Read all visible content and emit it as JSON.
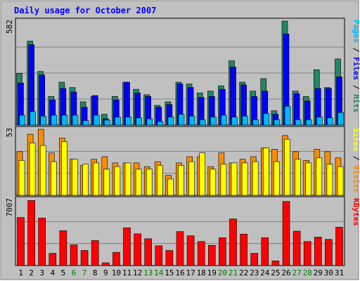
{
  "chart_data": {
    "type": "bar",
    "title": "Daily usage for October 2007",
    "x": [
      "1",
      "2",
      "3",
      "4",
      "5",
      "6",
      "7",
      "8",
      "9",
      "10",
      "11",
      "12",
      "13",
      "14",
      "15",
      "16",
      "17",
      "18",
      "19",
      "20",
      "21",
      "22",
      "23",
      "24",
      "25",
      "26",
      "27",
      "28",
      "29",
      "30",
      "31"
    ],
    "weekend_days": [
      6,
      7,
      13,
      14,
      20,
      21,
      27,
      28
    ],
    "panels": [
      {
        "id": "hits",
        "max_label": "582",
        "ymax": 582,
        "legend": [
          "Pages",
          "Files",
          "Hits"
        ],
        "series": [
          {
            "name": "Hits",
            "color": "#238664",
            "values": [
              290,
              470,
              300,
              160,
              240,
              210,
              130,
              160,
              60,
              160,
              240,
              200,
              170,
              110,
              130,
              240,
              230,
              180,
              190,
              220,
              360,
              240,
              190,
              260,
              80,
              582,
              190,
              160,
              310,
              210,
              370
            ]
          },
          {
            "name": "Files",
            "color": "#0000ff",
            "values": [
              235,
              450,
              280,
              140,
              205,
              185,
              100,
              165,
              35,
              140,
              240,
              180,
              160,
              100,
              115,
              230,
              210,
              155,
              160,
              200,
              325,
              225,
              160,
              190,
              60,
              510,
              175,
              135,
              205,
              205,
              270
            ]
          },
          {
            "name": "Pages",
            "color": "#00b8f8",
            "values": [
              55,
              75,
              50,
              55,
              55,
              55,
              25,
              55,
              28,
              45,
              45,
              40,
              35,
              20,
              45,
              60,
              50,
              30,
              45,
              55,
              45,
              50,
              30,
              65,
              30,
              105,
              30,
              30,
              45,
              40,
              70
            ]
          }
        ]
      },
      {
        "id": "visits",
        "max_label": "53",
        "ymax": 53,
        "legend": [
          "Sites",
          "Visits"
        ],
        "series": [
          {
            "name": "Visits",
            "color": "#f88c00",
            "values": [
              35,
              49,
              53,
              34,
              46,
              29,
              24,
              29,
              31,
              26,
              26,
              26,
              23,
              27,
              16,
              26,
              31,
              31,
              23,
              34,
              26,
              29,
              31,
              38,
              37,
              48,
              35,
              28,
              37,
              35,
              30
            ]
          },
          {
            "name": "Sites",
            "color": "#ffff00",
            "values": [
              28,
              42,
              40,
              27,
              43,
              29,
              25,
              26,
              21,
              23,
              26,
              21,
              21,
              24,
              13,
              24,
              27,
              34,
              21,
              25,
              26,
              26,
              27,
              38,
              27,
              45,
              29,
              26,
              30,
              25,
              23
            ]
          }
        ]
      },
      {
        "id": "kbytes",
        "max_label": "7007",
        "ymax": 7007,
        "legend": [
          "KBytes"
        ],
        "series": [
          {
            "name": "KBytes",
            "color": "#ff0000",
            "values": [
              5100,
              6900,
              5050,
              1300,
              3700,
              2200,
              1600,
              2650,
              300,
              1400,
              4000,
              3370,
              2850,
              2100,
              1600,
              3600,
              3160,
              2550,
              2150,
              2950,
              4950,
              3340,
              1300,
              2950,
              500,
              6800,
              3650,
              2550,
              3020,
              2780,
              4070
            ]
          }
        ]
      }
    ],
    "colors": {
      "background": "#c0c0c0",
      "frame": "#ffffff",
      "title": "#0000ff",
      "weekday_label": "#000000",
      "weekend_label": "#007f00"
    }
  }
}
